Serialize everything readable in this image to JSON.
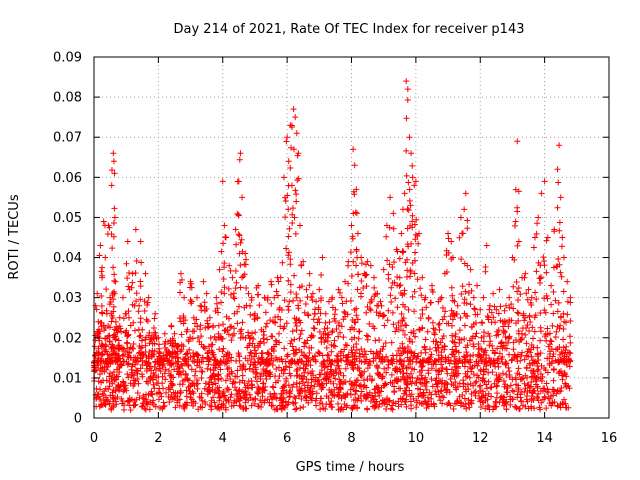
{
  "chart_data": {
    "type": "scatter",
    "title": "Day 214 of 2021, Rate Of TEC Index for receiver p143",
    "xlabel": "GPS time / hours",
    "ylabel": "ROTI / TECUs",
    "xlim": [
      0,
      16
    ],
    "ylim": [
      0,
      0.09
    ],
    "xticks": [
      "0",
      "2",
      "4",
      "6",
      "8",
      "10",
      "12",
      "14",
      "16"
    ],
    "yticks": [
      "0",
      "0.01",
      "0.02",
      "0.03",
      "0.04",
      "0.05",
      "0.06",
      "0.07",
      "0.08",
      "0.09"
    ],
    "grid": true,
    "marker": "plus",
    "color": "#ff0000",
    "series": [
      {
        "name": "ROTI",
        "x": [
          0.0,
          0.05,
          0.1,
          0.15,
          0.2,
          0.25,
          0.3,
          0.35,
          0.4,
          0.45,
          0.5,
          0.55,
          0.6,
          0.62,
          0.64,
          0.65,
          0.7,
          0.75,
          0.8,
          0.9,
          1.0,
          1.05,
          1.1,
          1.2,
          1.3,
          1.4,
          1.45,
          1.5,
          1.6,
          1.7,
          1.8,
          1.9,
          2.0,
          2.1,
          2.2,
          2.3,
          2.4,
          2.5,
          2.6,
          2.7,
          2.8,
          2.9,
          3.0,
          3.1,
          3.2,
          3.3,
          3.4,
          3.5,
          3.6,
          3.7,
          3.8,
          3.9,
          4.0,
          4.05,
          4.1,
          4.2,
          4.3,
          4.4,
          4.5,
          4.55,
          4.6,
          4.7,
          4.8,
          4.9,
          5.0,
          5.1,
          5.2,
          5.3,
          5.4,
          5.5,
          5.6,
          5.7,
          5.8,
          5.9,
          6.0,
          6.05,
          6.1,
          6.15,
          6.2,
          6.25,
          6.3,
          6.35,
          6.4,
          6.5,
          6.6,
          6.7,
          6.8,
          6.9,
          7.0,
          7.1,
          7.2,
          7.3,
          7.4,
          7.5,
          7.6,
          7.7,
          7.8,
          7.9,
          8.0,
          8.05,
          8.1,
          8.15,
          8.2,
          8.3,
          8.4,
          8.5,
          8.6,
          8.7,
          8.8,
          8.9,
          9.0,
          9.1,
          9.2,
          9.3,
          9.4,
          9.5,
          9.55,
          9.6,
          9.65,
          9.7,
          9.75,
          9.8,
          9.85,
          9.9,
          9.95,
          10.0,
          10.1,
          10.2,
          10.3,
          10.4,
          10.5,
          10.6,
          10.7,
          10.8,
          10.9,
          11.0,
          11.1,
          11.15,
          11.2,
          11.3,
          11.4,
          11.5,
          11.55,
          11.6,
          11.7,
          11.8,
          11.9,
          12.0,
          12.1,
          12.2,
          12.3,
          12.4,
          12.5,
          12.6,
          12.7,
          12.8,
          12.9,
          13.0,
          13.1,
          13.15,
          13.2,
          13.3,
          13.4,
          13.5,
          13.6,
          13.7,
          13.8,
          13.9,
          14.0,
          14.1,
          14.2,
          14.3,
          14.4,
          14.45,
          14.5,
          14.55,
          14.6,
          14.7,
          14.8
        ],
        "y": [
          0.012,
          0.028,
          0.031,
          0.022,
          0.043,
          0.035,
          0.049,
          0.04,
          0.026,
          0.048,
          0.03,
          0.058,
          0.066,
          0.064,
          0.061,
          0.05,
          0.022,
          0.018,
          0.025,
          0.03,
          0.026,
          0.044,
          0.032,
          0.036,
          0.047,
          0.028,
          0.044,
          0.022,
          0.036,
          0.03,
          0.02,
          0.026,
          0.02,
          0.015,
          0.021,
          0.019,
          0.023,
          0.021,
          0.018,
          0.036,
          0.03,
          0.022,
          0.034,
          0.025,
          0.03,
          0.028,
          0.034,
          0.031,
          0.025,
          0.023,
          0.03,
          0.037,
          0.059,
          0.048,
          0.045,
          0.038,
          0.035,
          0.047,
          0.059,
          0.066,
          0.055,
          0.041,
          0.031,
          0.03,
          0.026,
          0.033,
          0.022,
          0.03,
          0.03,
          0.034,
          0.03,
          0.035,
          0.035,
          0.06,
          0.07,
          0.064,
          0.073,
          0.058,
          0.077,
          0.075,
          0.071,
          0.066,
          0.048,
          0.039,
          0.032,
          0.036,
          0.031,
          0.029,
          0.032,
          0.04,
          0.026,
          0.029,
          0.03,
          0.027,
          0.032,
          0.03,
          0.034,
          0.039,
          0.048,
          0.067,
          0.063,
          0.057,
          0.046,
          0.04,
          0.036,
          0.039,
          0.038,
          0.035,
          0.031,
          0.029,
          0.037,
          0.048,
          0.055,
          0.051,
          0.042,
          0.035,
          0.046,
          0.052,
          0.056,
          0.084,
          0.082,
          0.07,
          0.066,
          0.06,
          0.058,
          0.059,
          0.046,
          0.035,
          0.03,
          0.025,
          0.033,
          0.022,
          0.029,
          0.03,
          0.036,
          0.046,
          0.044,
          0.04,
          0.029,
          0.028,
          0.05,
          0.052,
          0.056,
          0.038,
          0.037,
          0.03,
          0.033,
          0.027,
          0.03,
          0.043,
          0.028,
          0.031,
          0.027,
          0.032,
          0.024,
          0.028,
          0.03,
          0.04,
          0.049,
          0.069,
          0.044,
          0.035,
          0.036,
          0.032,
          0.03,
          0.045,
          0.05,
          0.056,
          0.059,
          0.045,
          0.033,
          0.047,
          0.062,
          0.068,
          0.055,
          0.045,
          0.04,
          0.034,
          0.03
        ],
        "baseline_min": 0.002,
        "baseline_max": 0.014
      }
    ]
  }
}
